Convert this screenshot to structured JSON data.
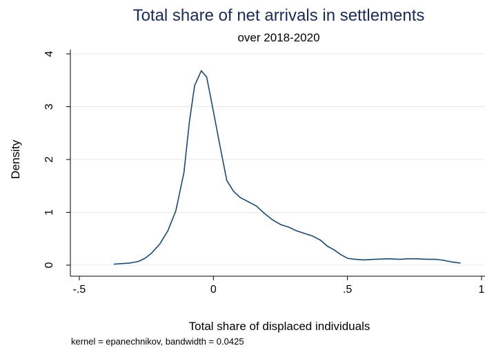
{
  "chart_data": {
    "type": "line",
    "title": "Total share of net arrivals in settlements",
    "subtitle": "over 2018-2020",
    "xlabel": "Total share of displaced individuals",
    "ylabel": "Density",
    "note": "kernel = epanechnikov, bandwidth = 0.0425",
    "xlim": [
      -0.5,
      1
    ],
    "ylim": [
      0,
      4
    ],
    "x_ticks": [
      -0.5,
      0,
      0.5,
      1
    ],
    "x_tick_labels": [
      "-.5",
      "0",
      ".5",
      "1"
    ],
    "y_ticks": [
      0,
      1,
      2,
      3,
      4
    ],
    "y_tick_labels": [
      "0",
      "1",
      "2",
      "3",
      "4"
    ],
    "grid": true,
    "line_color": "#1a476f",
    "title_color": "#1a2b55",
    "series": [
      {
        "x": [
          -0.37,
          -0.34,
          -0.31,
          -0.28,
          -0.255,
          -0.23,
          -0.2,
          -0.17,
          -0.14,
          -0.11,
          -0.09,
          -0.07,
          -0.045,
          -0.025,
          -0.005,
          0.025,
          0.05,
          0.075,
          0.1,
          0.13,
          0.16,
          0.19,
          0.22,
          0.25,
          0.28,
          0.31,
          0.34,
          0.37,
          0.4,
          0.425,
          0.45,
          0.475,
          0.5,
          0.53,
          0.56,
          0.6,
          0.65,
          0.7,
          0.72,
          0.76,
          0.8,
          0.83,
          0.86,
          0.89,
          0.92
        ],
        "y": [
          0.02,
          0.03,
          0.04,
          0.07,
          0.13,
          0.23,
          0.4,
          0.65,
          1.03,
          1.75,
          2.7,
          3.4,
          3.68,
          3.56,
          3.04,
          2.24,
          1.6,
          1.4,
          1.28,
          1.2,
          1.12,
          0.98,
          0.86,
          0.77,
          0.72,
          0.65,
          0.6,
          0.55,
          0.47,
          0.36,
          0.29,
          0.2,
          0.13,
          0.11,
          0.1,
          0.11,
          0.12,
          0.11,
          0.12,
          0.12,
          0.11,
          0.11,
          0.09,
          0.06,
          0.04
        ]
      }
    ]
  }
}
